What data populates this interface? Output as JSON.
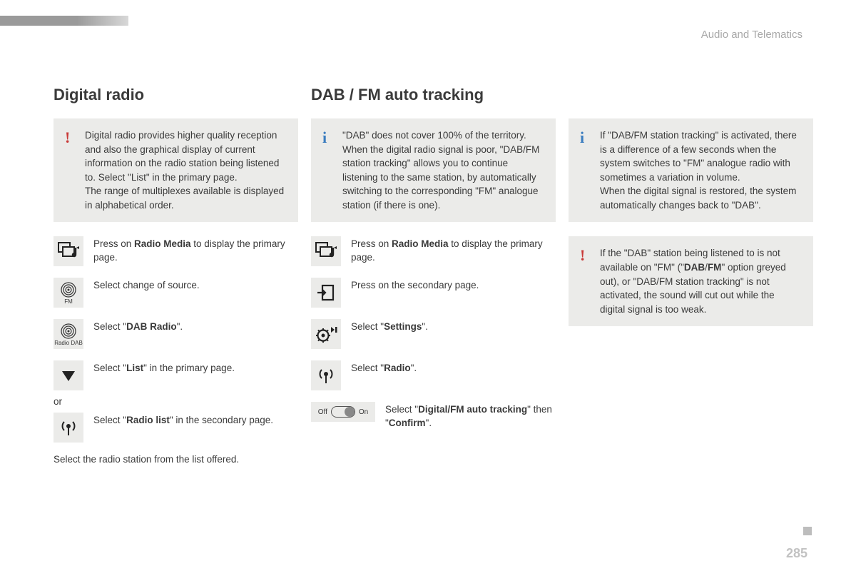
{
  "header": {
    "section": "Audio and Telematics",
    "page_number": "285"
  },
  "colors": {
    "box_bg": "#ebebe9",
    "text": "#3a3a3a",
    "excl": "#c93a38",
    "info_blue": "#3a7cbf",
    "header_grey": "#a8a8a8"
  },
  "col1": {
    "title": "Digital radio",
    "warn": "Digital radio provides higher quality reception and also the graphical display of current information on the radio station being listened to. Select \"List\" in the primary page.\nThe range of multiplexes available is displayed in alphabetical order.",
    "steps": [
      {
        "icon": "radio-media",
        "html": "Press on <b>Radio Media</b> to display the primary page."
      },
      {
        "icon": "fm-source",
        "label": "FM",
        "html": "Select change of source."
      },
      {
        "icon": "dab-source",
        "label": "Radio DAB",
        "html": "Select \"<b>DAB Radio</b>\"."
      },
      {
        "icon": "triangle-down",
        "html": "Select \"<b>List</b>\" in the primary page."
      }
    ],
    "or": "or",
    "steps_after": [
      {
        "icon": "antenna",
        "html": "Select \"<b>Radio list</b>\" in the secondary page."
      }
    ],
    "footer": "Select the radio station from the list offered."
  },
  "col2": {
    "title": "DAB / FM auto tracking",
    "info": "\"DAB\" does not cover 100% of the territory.\nWhen the digital radio signal is poor, \"DAB/FM station tracking\" allows you to continue listening to the same station, by automatically switching to the corresponding \"FM\" analogue station (if there is one).",
    "steps": [
      {
        "icon": "radio-media",
        "html": "Press on <b>Radio Media</b> to display the primary page."
      },
      {
        "icon": "secondary-page",
        "html": "Press on the secondary page."
      },
      {
        "icon": "settings",
        "html": "Select \"<b>Settings</b>\"."
      },
      {
        "icon": "antenna",
        "html": "Select \"<b>Radio</b>\"."
      },
      {
        "icon": "toggle",
        "off": "Off",
        "on": "On",
        "html": "Select \"<b>Digital/FM auto tracking</b>\" then \"<b>Confirm</b>\"."
      }
    ]
  },
  "col3": {
    "info1": "If \"DAB/FM station tracking\" is activated, there is a difference of a few seconds when the system switches to \"FM\" analogue radio with sometimes a variation in volume.\nWhen the digital signal is restored, the system automatically changes back to \"DAB\".",
    "warn": "If the \"DAB\" station being listened to is not available on \"FM\" (\"<b>DAB</b>/<b>FM</b>\" option greyed out), or \"DAB/FM station tracking\" is not activated, the sound will cut out while the digital signal is too weak."
  }
}
